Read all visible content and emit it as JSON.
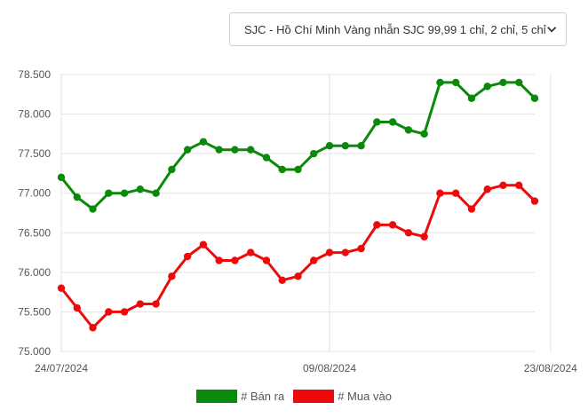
{
  "selector": {
    "label": "SJC - Hồ Chí Minh Vàng nhẫn SJC 99,99 1 chỉ, 2 chỉ, 5 chỉ",
    "icon": "chevron-down-icon"
  },
  "chart_data": {
    "type": "line",
    "x_tick_labels": [
      "24/07/2024",
      "09/08/2024",
      "23/08/2024"
    ],
    "x_tick_positions": [
      0,
      17,
      31
    ],
    "y_tick_labels": [
      "75.000",
      "75.500",
      "76.000",
      "76.500",
      "77.000",
      "77.500",
      "78.000",
      "78.500"
    ],
    "ylim": [
      75000,
      78500
    ],
    "grid": true,
    "legend_position": "bottom",
    "series": [
      {
        "name": "# Bán ra",
        "color": "#0a8a0a",
        "values": [
          77200,
          76950,
          76800,
          77000,
          77000,
          77050,
          77000,
          77300,
          77550,
          77650,
          77550,
          77550,
          77550,
          77450,
          77300,
          77300,
          77500,
          77600,
          77600,
          77600,
          77900,
          77900,
          77800,
          77750,
          78400,
          78400,
          78200,
          78350,
          78400,
          78400,
          78200
        ]
      },
      {
        "name": "# Mua vào",
        "color": "#ee0a0a",
        "values": [
          75800,
          75550,
          75300,
          75500,
          75500,
          75600,
          75600,
          75950,
          76200,
          76350,
          76150,
          76150,
          76250,
          76150,
          75900,
          75950,
          76150,
          76250,
          76250,
          76300,
          76600,
          76600,
          76500,
          76450,
          77000,
          77000,
          76800,
          77050,
          77100,
          77100,
          76900
        ]
      }
    ]
  }
}
